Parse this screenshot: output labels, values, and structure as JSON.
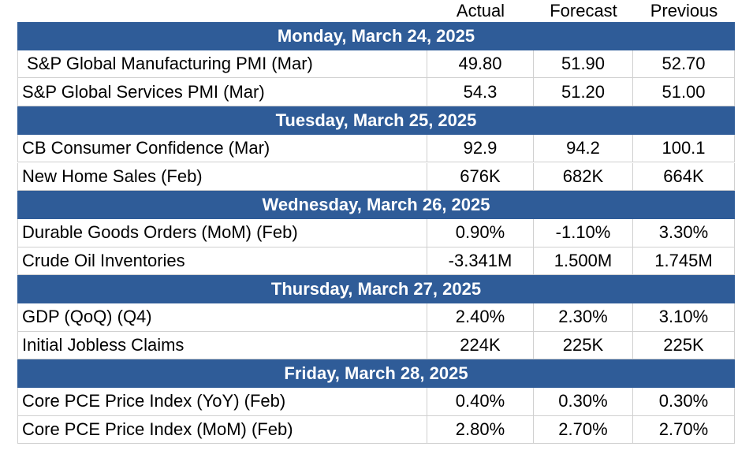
{
  "table": {
    "columns": [
      "Actual",
      "Forecast",
      "Previous"
    ],
    "sections": [
      {
        "day": "Monday, March 24, 2025",
        "rows": [
          {
            "label": " S&P Global Manufacturing PMI (Mar)",
            "values": [
              "49.80",
              "51.90",
              "52.70"
            ]
          },
          {
            "label": "S&P Global Services PMI (Mar)",
            "values": [
              "54.3",
              "51.20",
              "51.00"
            ]
          }
        ]
      },
      {
        "day": "Tuesday, March 25, 2025",
        "rows": [
          {
            "label": "CB Consumer Confidence (Mar)",
            "values": [
              "92.9",
              "94.2",
              "100.1"
            ]
          },
          {
            "label": "New Home Sales (Feb)",
            "values": [
              "676K",
              "682K",
              "664K"
            ]
          }
        ]
      },
      {
        "day": "Wednesday, March 26, 2025",
        "rows": [
          {
            "label": "Durable Goods Orders (MoM) (Feb)",
            "values": [
              "0.90%",
              "-1.10%",
              "3.30%"
            ]
          },
          {
            "label": "Crude Oil Inventories",
            "values": [
              "-3.341M",
              "1.500M",
              "1.745M"
            ]
          }
        ]
      },
      {
        "day": "Thursday, March 27, 2025",
        "rows": [
          {
            "label": "GDP (QoQ) (Q4)",
            "values": [
              "2.40%",
              "2.30%",
              "3.10%"
            ]
          },
          {
            "label": "Initial Jobless Claims",
            "values": [
              "224K",
              "225K",
              "225K"
            ]
          }
        ]
      },
      {
        "day": "Friday, March 28, 2025",
        "rows": [
          {
            "label": "Core PCE Price Index (YoY) (Feb)",
            "values": [
              "0.40%",
              "0.30%",
              "0.30%"
            ]
          },
          {
            "label": "Core PCE Price Index (MoM) (Feb)",
            "values": [
              "2.80%",
              "2.70%",
              "2.70%"
            ]
          }
        ]
      }
    ]
  }
}
